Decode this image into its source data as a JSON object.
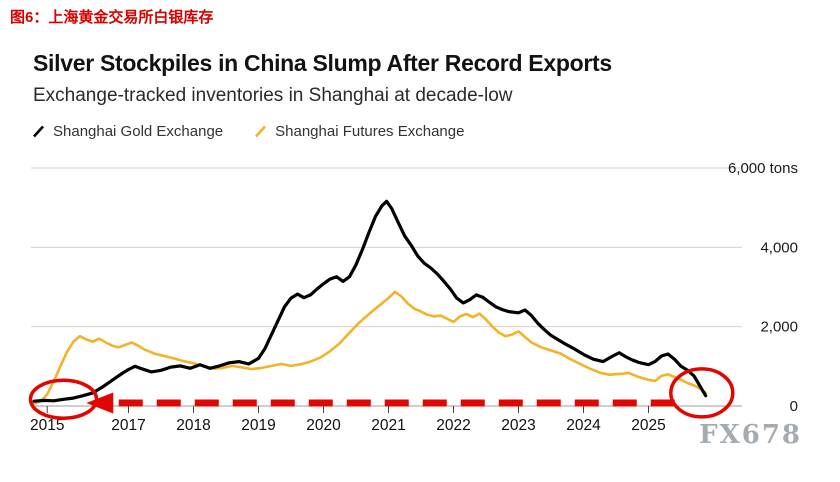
{
  "page": {
    "caption": "图6：上海黄金交易所白银库存",
    "watermark": "FX678"
  },
  "chart": {
    "title": "Silver Stockpiles in China Slump After Record Exports",
    "subtitle": "Exchange-tracked inventories in Shanghai at decade-low",
    "legend": [
      {
        "label": "Shanghai Gold Exchange",
        "color": "#000000"
      },
      {
        "label": "Shanghai Futures Exchange",
        "color": "#f3b229"
      }
    ]
  },
  "chart_data": {
    "type": "line",
    "title": "Silver Stockpiles in China Slump After Record Exports",
    "subtitle": "Exchange-tracked inventories in Shanghai at decade-low",
    "unit": "tons",
    "xlabel": "",
    "ylabel": "",
    "ylim": [
      0,
      6000
    ],
    "x_domain": [
      2015.5,
      2026.3
    ],
    "grid": "horizontal",
    "legend_position": "top-left",
    "yticks": [
      {
        "value": 0,
        "label": "0"
      },
      {
        "value": 2000,
        "label": "2,000"
      },
      {
        "value": 4000,
        "label": "4,000"
      },
      {
        "value": 6000,
        "label": "6,000 tons"
      }
    ],
    "xticks": [
      {
        "value": 2015.75,
        "label": "2015"
      },
      {
        "value": 2017,
        "label": "2017"
      },
      {
        "value": 2018,
        "label": "2018"
      },
      {
        "value": 2019,
        "label": "2019"
      },
      {
        "value": 2020,
        "label": "2020"
      },
      {
        "value": 2021,
        "label": "2021"
      },
      {
        "value": 2022,
        "label": "2022"
      },
      {
        "value": 2023,
        "label": "2023"
      },
      {
        "value": 2024,
        "label": "2024"
      },
      {
        "value": 2025,
        "label": "2025"
      }
    ],
    "series": [
      {
        "name": "Shanghai Gold Exchange",
        "color": "#000000",
        "x": [
          2015.55,
          2015.7,
          2015.85,
          2016.0,
          2016.15,
          2016.3,
          2016.45,
          2016.6,
          2016.75,
          2016.9,
          2017.0,
          2017.1,
          2017.2,
          2017.35,
          2017.5,
          2017.65,
          2017.8,
          2017.95,
          2018.1,
          2018.25,
          2018.4,
          2018.55,
          2018.7,
          2018.85,
          2019.0,
          2019.1,
          2019.2,
          2019.3,
          2019.4,
          2019.5,
          2019.6,
          2019.7,
          2019.8,
          2019.9,
          2020.0,
          2020.1,
          2020.2,
          2020.3,
          2020.4,
          2020.5,
          2020.6,
          2020.7,
          2020.8,
          2020.9,
          2020.97,
          2021.05,
          2021.15,
          2021.25,
          2021.35,
          2021.45,
          2021.55,
          2021.65,
          2021.75,
          2021.85,
          2021.95,
          2022.05,
          2022.15,
          2022.25,
          2022.35,
          2022.45,
          2022.55,
          2022.65,
          2022.75,
          2022.85,
          2023.0,
          2023.1,
          2023.2,
          2023.3,
          2023.4,
          2023.5,
          2023.6,
          2023.7,
          2023.85,
          2024.0,
          2024.15,
          2024.3,
          2024.45,
          2024.55,
          2024.65,
          2024.75,
          2024.85,
          2025.0,
          2025.1,
          2025.2,
          2025.3,
          2025.4,
          2025.5,
          2025.6,
          2025.7,
          2025.8,
          2025.88
        ],
        "values": [
          120,
          140,
          130,
          170,
          200,
          260,
          330,
          480,
          650,
          820,
          920,
          1000,
          940,
          860,
          900,
          980,
          1010,
          950,
          1040,
          950,
          1010,
          1090,
          1120,
          1060,
          1200,
          1450,
          1800,
          2150,
          2500,
          2720,
          2820,
          2730,
          2800,
          2950,
          3080,
          3200,
          3260,
          3140,
          3260,
          3560,
          3950,
          4380,
          4780,
          5050,
          5160,
          4980,
          4620,
          4280,
          4050,
          3780,
          3600,
          3480,
          3330,
          3150,
          2950,
          2720,
          2600,
          2680,
          2800,
          2740,
          2620,
          2500,
          2430,
          2380,
          2350,
          2420,
          2280,
          2080,
          1920,
          1780,
          1680,
          1580,
          1450,
          1300,
          1180,
          1120,
          1260,
          1340,
          1240,
          1160,
          1100,
          1040,
          1120,
          1260,
          1310,
          1180,
          1000,
          900,
          760,
          480,
          260
        ]
      },
      {
        "name": "Shanghai Futures Exchange",
        "color": "#f3b229",
        "x": [
          2015.55,
          2015.65,
          2015.75,
          2015.85,
          2015.95,
          2016.05,
          2016.15,
          2016.25,
          2016.35,
          2016.45,
          2016.55,
          2016.65,
          2016.75,
          2016.85,
          2016.95,
          2017.05,
          2017.15,
          2017.25,
          2017.4,
          2017.55,
          2017.7,
          2017.85,
          2018.0,
          2018.15,
          2018.3,
          2018.45,
          2018.6,
          2018.75,
          2018.9,
          2019.05,
          2019.2,
          2019.35,
          2019.5,
          2019.65,
          2019.8,
          2019.95,
          2020.1,
          2020.25,
          2020.4,
          2020.55,
          2020.7,
          2020.85,
          2021.0,
          2021.1,
          2021.2,
          2021.3,
          2021.4,
          2021.5,
          2021.6,
          2021.7,
          2021.8,
          2021.9,
          2022.0,
          2022.1,
          2022.2,
          2022.3,
          2022.4,
          2022.5,
          2022.6,
          2022.7,
          2022.8,
          2022.9,
          2023.0,
          2023.1,
          2023.2,
          2023.35,
          2023.5,
          2023.65,
          2023.8,
          2023.95,
          2024.1,
          2024.25,
          2024.4,
          2024.55,
          2024.7,
          2024.85,
          2025.0,
          2025.1,
          2025.2,
          2025.3,
          2025.4,
          2025.5,
          2025.6,
          2025.7,
          2025.8,
          2025.88
        ],
        "values": [
          60,
          120,
          300,
          620,
          1000,
          1350,
          1620,
          1760,
          1680,
          1620,
          1700,
          1600,
          1520,
          1480,
          1540,
          1600,
          1520,
          1420,
          1320,
          1260,
          1200,
          1130,
          1080,
          1000,
          940,
          960,
          1010,
          970,
          930,
          960,
          1010,
          1060,
          1010,
          1050,
          1120,
          1220,
          1380,
          1580,
          1850,
          2100,
          2320,
          2520,
          2720,
          2880,
          2760,
          2580,
          2450,
          2380,
          2300,
          2260,
          2280,
          2200,
          2120,
          2260,
          2320,
          2240,
          2330,
          2180,
          2000,
          1850,
          1760,
          1800,
          1880,
          1740,
          1600,
          1480,
          1400,
          1320,
          1180,
          1060,
          940,
          840,
          790,
          810,
          830,
          730,
          660,
          630,
          760,
          800,
          730,
          660,
          580,
          520,
          430,
          330
        ]
      }
    ],
    "annotations": {
      "color": "#e10600",
      "description": "Red circles mark the near-zero start (2015) and near-zero end (2025) levels, linked by a left-pointing dashed arrow",
      "circles": [
        {
          "x": 2016.0,
          "value": 170,
          "rx": 33,
          "ry": 19
        },
        {
          "x": 2025.82,
          "value": 330,
          "rx": 31,
          "ry": 24
        }
      ],
      "dashed_arrow": {
        "tip_x": 2016.35,
        "dash_from_x": 2016.85,
        "dash_to_x": 2025.55,
        "value": 75,
        "direction": "left"
      }
    }
  }
}
